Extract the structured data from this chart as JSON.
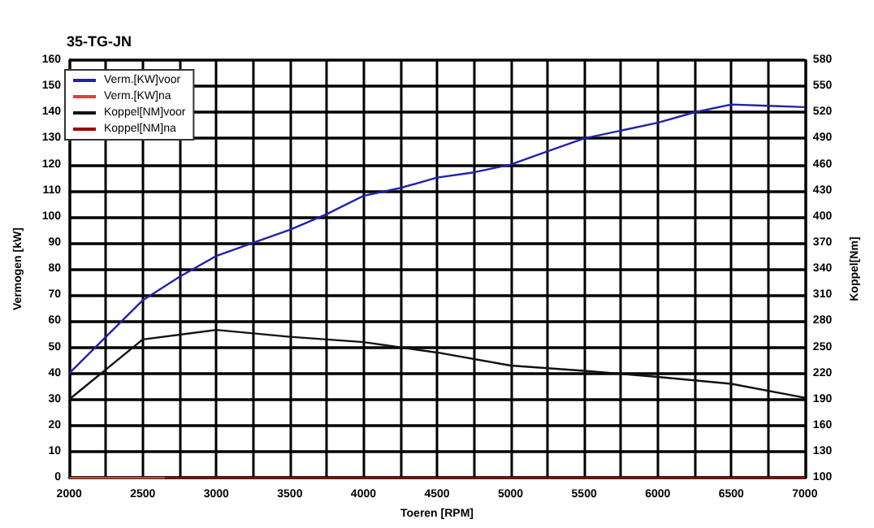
{
  "chart_data": {
    "type": "line",
    "title": "35-TG-JN",
    "xlabel": "Toeren [RPM]",
    "ylabel": "Vermogen [kW]",
    "y2label": "Koppel[Nm]",
    "x": [
      2000,
      2250,
      2500,
      2750,
      3000,
      3250,
      3500,
      3750,
      4000,
      4250,
      4500,
      4750,
      5000,
      5250,
      5500,
      5750,
      6000,
      6250,
      6500,
      6750,
      7000
    ],
    "series": [
      {
        "name": "Verm.[KW]voor",
        "color": "#2222aa",
        "values": [
          40,
          54,
          68,
          77,
          85,
          90,
          95,
          101,
          108,
          111,
          115,
          117,
          120,
          125,
          130,
          133,
          136,
          140,
          143,
          142.5,
          142
        ]
      },
      {
        "name": "Verm.[KW]na",
        "color": "#e04040",
        "x": [
          2000,
          2250,
          2500,
          2650
        ],
        "values": [
          0,
          0,
          0,
          0
        ]
      },
      {
        "name": "Koppel[NM]voor",
        "color": "#111111",
        "axis": "y2",
        "x": [
          2000,
          2500,
          3000,
          3500,
          4000,
          4500,
          5000,
          5500,
          6000,
          6500,
          7000
        ],
        "values": [
          190,
          259,
          270,
          262,
          256,
          244,
          229,
          223,
          216,
          208,
          192
        ]
      },
      {
        "name": "Koppel[NM]na",
        "color": "#a00000",
        "axis": "y2",
        "x": [
          2650,
          3000,
          3500,
          4000,
          4500,
          5000,
          5500,
          6000,
          6500,
          7000
        ],
        "values": [
          100,
          100,
          100,
          100,
          100,
          100,
          100,
          100,
          100,
          100
        ]
      }
    ],
    "xlim": [
      2000,
      7000
    ],
    "xticks": [
      2000,
      {
        "value": 2250,
        "label": null
      },
      2500,
      {
        "value": 2750,
        "label": null
      },
      3000,
      {
        "value": 3250,
        "label": null
      },
      3500,
      {
        "value": 3750,
        "label": null
      },
      4000,
      {
        "value": 4250,
        "label": null
      },
      4500,
      {
        "value": 4750,
        "label": null
      },
      5000,
      {
        "value": 5250,
        "label": null
      },
      5500,
      {
        "value": 5750,
        "label": null
      },
      6000,
      {
        "value": 6250,
        "label": null
      },
      6500,
      {
        "value": 6750,
        "label": null
      },
      7000
    ],
    "ylim": [
      0,
      160
    ],
    "yticks": [
      0,
      10,
      20,
      30,
      40,
      50,
      60,
      70,
      80,
      90,
      100,
      110,
      120,
      130,
      140,
      150,
      160
    ],
    "y2lim": [
      100,
      580
    ],
    "y2ticks": [
      100,
      130,
      160,
      190,
      220,
      250,
      280,
      310,
      340,
      370,
      400,
      430,
      460,
      490,
      520,
      550,
      580
    ],
    "grid": true,
    "legend": "top left",
    "marker": "none",
    "line_style": "solid"
  }
}
